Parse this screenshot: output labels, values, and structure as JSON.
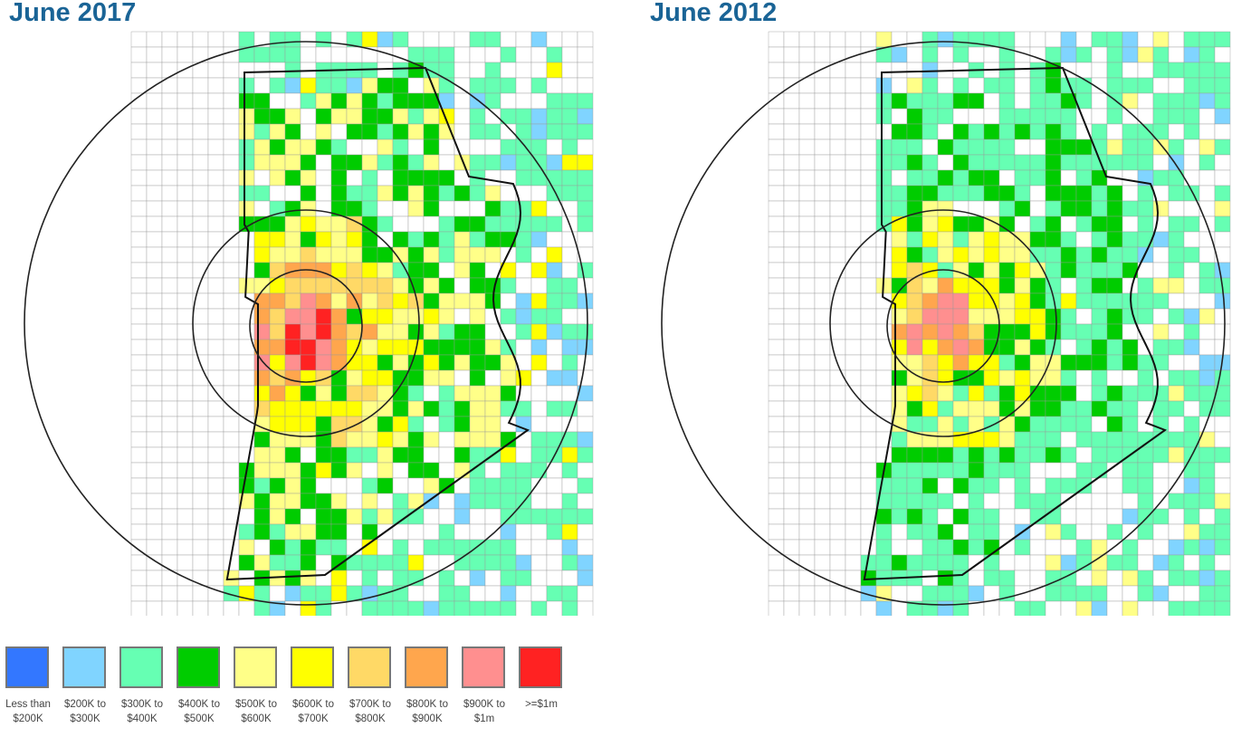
{
  "maps": [
    {
      "title": "June 2017",
      "shift": 0
    },
    {
      "title": "June 2012",
      "shift": 1
    }
  ],
  "legend": [
    {
      "label": "Less than $200K",
      "color": "#3377ff"
    },
    {
      "label": "$200K to $300K",
      "color": "#80d4ff"
    },
    {
      "label": "$300K to $400K",
      "color": "#66ffb3"
    },
    {
      "label": "$400K to $500K",
      "color": "#00cc00"
    },
    {
      "label": "$500K to $600K",
      "color": "#ffff88"
    },
    {
      "label": "$600K to $700K",
      "color": "#ffff00"
    },
    {
      "label": "$700K to $800K",
      "color": "#ffd966"
    },
    {
      "label": "$800K to $900K",
      "color": "#ffa64d"
    },
    {
      "label": "$900K to $1m",
      "color": "#ff8f8f"
    },
    {
      "label": ">=$1m",
      "color": "#ff2222"
    }
  ]
}
